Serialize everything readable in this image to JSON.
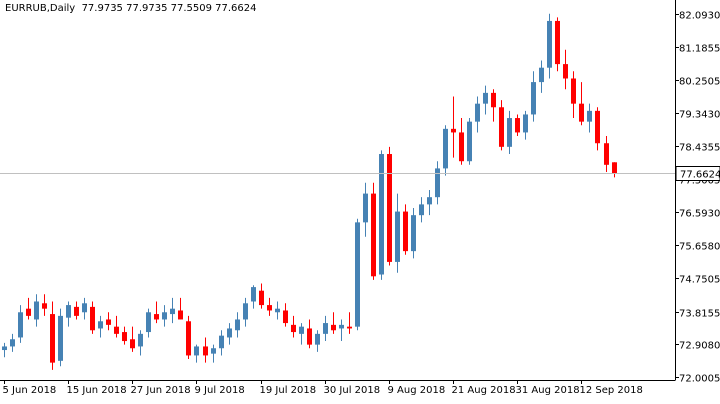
{
  "header": {
    "symbol_label": "EURRUB,Daily",
    "ohlc_text": "77.9735 77.9735 77.5509 77.6624"
  },
  "colors": {
    "bull": "#4682b4",
    "bear": "#ff0000",
    "frame": "#000000",
    "price_line": "#c0c0c0",
    "background": "#ffffff"
  },
  "chart_data": {
    "type": "candlestick",
    "symbol": "EURRUB",
    "timeframe": "Daily",
    "ylim": [
      72.0,
      82.09
    ],
    "y_ticks": [
      "82.0930",
      "81.1855",
      "80.2505",
      "79.3430",
      "78.4355",
      "77.5005",
      "76.5930",
      "75.6580",
      "74.7505",
      "73.8155",
      "72.9080",
      "72.0005"
    ],
    "x_tick_labels": [
      "5 Jun 2018",
      "15 Jun 2018",
      "27 Jun 2018",
      "9 Jul 2018",
      "19 Jul 2018",
      "30 Jul 2018",
      "9 Aug 2018",
      "21 Aug 2018",
      "31 Aug 2018",
      "12 Sep 2018"
    ],
    "x_tick_index": [
      0,
      8,
      16,
      24,
      32,
      40,
      48,
      56,
      64,
      72
    ],
    "current_price": "77.6624",
    "ohlc": [
      [
        72.75,
        72.95,
        72.55,
        72.85
      ],
      [
        72.85,
        73.2,
        72.7,
        73.05
      ],
      [
        73.1,
        74.0,
        72.95,
        73.8
      ],
      [
        73.9,
        74.2,
        73.6,
        73.7
      ],
      [
        73.6,
        74.3,
        73.4,
        74.1
      ],
      [
        74.05,
        74.3,
        73.7,
        73.9
      ],
      [
        73.75,
        74.1,
        72.2,
        72.4
      ],
      [
        72.45,
        73.9,
        72.3,
        73.7
      ],
      [
        73.65,
        74.1,
        73.4,
        74.0
      ],
      [
        73.95,
        74.1,
        73.6,
        73.7
      ],
      [
        73.8,
        74.2,
        73.6,
        74.05
      ],
      [
        73.95,
        74.1,
        73.2,
        73.3
      ],
      [
        73.35,
        73.7,
        73.1,
        73.55
      ],
      [
        73.6,
        73.8,
        73.3,
        73.45
      ],
      [
        73.4,
        73.7,
        73.1,
        73.2
      ],
      [
        73.25,
        73.4,
        72.9,
        73.0
      ],
      [
        73.05,
        73.4,
        72.7,
        72.8
      ],
      [
        72.85,
        73.3,
        72.6,
        73.2
      ],
      [
        73.25,
        73.9,
        73.1,
        73.8
      ],
      [
        73.75,
        74.1,
        73.5,
        73.6
      ],
      [
        73.6,
        74.0,
        73.4,
        73.8
      ],
      [
        73.75,
        74.2,
        73.5,
        73.9
      ],
      [
        73.85,
        74.2,
        73.6,
        73.6
      ],
      [
        73.55,
        73.7,
        72.5,
        72.6
      ],
      [
        72.6,
        72.9,
        72.4,
        72.85
      ],
      [
        72.85,
        73.1,
        72.4,
        72.6
      ],
      [
        72.65,
        72.9,
        72.4,
        72.8
      ],
      [
        72.8,
        73.3,
        72.6,
        73.15
      ],
      [
        73.1,
        73.5,
        72.9,
        73.35
      ],
      [
        73.3,
        73.8,
        73.1,
        73.6
      ],
      [
        73.6,
        74.2,
        73.4,
        74.05
      ],
      [
        74.1,
        74.55,
        73.9,
        74.5
      ],
      [
        74.4,
        74.6,
        73.9,
        74.0
      ],
      [
        74.0,
        74.2,
        73.7,
        73.85
      ],
      [
        73.8,
        74.1,
        73.6,
        73.9
      ],
      [
        73.85,
        74.05,
        73.4,
        73.5
      ],
      [
        73.45,
        73.7,
        73.1,
        73.25
      ],
      [
        73.2,
        73.5,
        72.9,
        73.4
      ],
      [
        73.35,
        73.6,
        72.8,
        72.9
      ],
      [
        72.9,
        73.3,
        72.7,
        73.2
      ],
      [
        73.2,
        73.7,
        73.0,
        73.5
      ],
      [
        73.45,
        73.8,
        73.2,
        73.3
      ],
      [
        73.35,
        73.6,
        73.0,
        73.45
      ],
      [
        73.4,
        73.8,
        73.2,
        73.35
      ],
      [
        73.4,
        76.4,
        73.3,
        76.3
      ],
      [
        76.3,
        77.4,
        75.9,
        77.1
      ],
      [
        77.1,
        77.4,
        74.7,
        74.8
      ],
      [
        74.85,
        78.3,
        74.7,
        78.2
      ],
      [
        78.2,
        78.4,
        75.1,
        75.2
      ],
      [
        75.2,
        77.1,
        74.9,
        76.6
      ],
      [
        76.6,
        76.8,
        75.4,
        75.5
      ],
      [
        75.5,
        76.7,
        75.3,
        76.5
      ],
      [
        76.5,
        77.0,
        76.3,
        76.8
      ],
      [
        76.8,
        77.2,
        76.5,
        77.0
      ],
      [
        77.0,
        78.0,
        76.8,
        77.8
      ],
      [
        77.8,
        79.0,
        77.6,
        78.9
      ],
      [
        78.9,
        79.8,
        78.1,
        78.8
      ],
      [
        78.8,
        79.2,
        77.9,
        78.0
      ],
      [
        78.0,
        79.2,
        77.9,
        79.1
      ],
      [
        79.1,
        79.8,
        78.8,
        79.6
      ],
      [
        79.6,
        80.1,
        79.3,
        79.9
      ],
      [
        79.9,
        80.0,
        79.1,
        79.5
      ],
      [
        79.5,
        79.7,
        78.3,
        78.4
      ],
      [
        78.4,
        79.4,
        78.2,
        79.2
      ],
      [
        79.2,
        79.3,
        78.7,
        78.8
      ],
      [
        78.8,
        79.4,
        78.6,
        79.3
      ],
      [
        79.3,
        80.5,
        79.1,
        80.2
      ],
      [
        80.2,
        80.8,
        79.9,
        80.6
      ],
      [
        80.6,
        82.1,
        80.3,
        81.9
      ],
      [
        81.9,
        82.0,
        80.5,
        80.7
      ],
      [
        80.7,
        81.1,
        80.0,
        80.3
      ],
      [
        80.3,
        80.5,
        79.2,
        79.6
      ],
      [
        79.6,
        80.2,
        79.0,
        79.1
      ],
      [
        79.1,
        79.6,
        78.8,
        79.4
      ],
      [
        79.4,
        79.5,
        78.3,
        78.5
      ],
      [
        78.5,
        78.7,
        77.7,
        77.9
      ],
      [
        77.97,
        77.97,
        77.55,
        77.66
      ]
    ]
  }
}
